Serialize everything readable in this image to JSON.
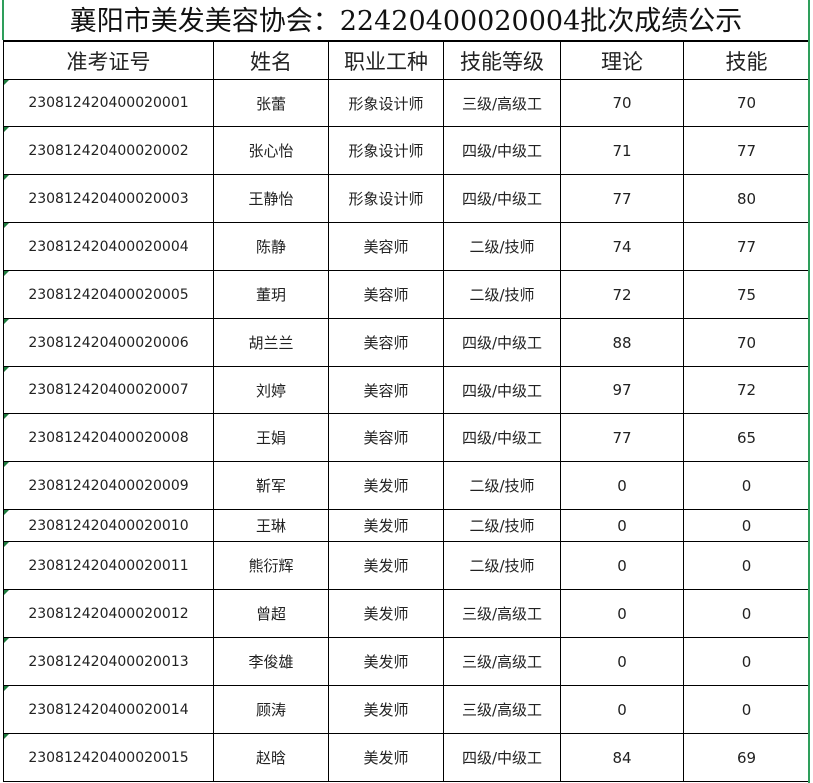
{
  "title": "襄阳市美发美容协会：22420400020004批次成绩公示",
  "headers": [
    "准考证号",
    "姓名",
    "职业工种",
    "技能等级",
    "理论",
    "技能"
  ],
  "rows": [
    [
      "230812420400020001",
      "张蕾",
      "形象设计师",
      "三级/高级工",
      "70",
      "70"
    ],
    [
      "230812420400020002",
      "张心怡",
      "形象设计师",
      "四级/中级工",
      "71",
      "77"
    ],
    [
      "230812420400020003",
      "王静怡",
      "形象设计师",
      "四级/中级工",
      "77",
      "80"
    ],
    [
      "230812420400020004",
      "陈静",
      "美容师",
      "二级/技师",
      "74",
      "77"
    ],
    [
      "230812420400020005",
      "董玥",
      "美容师",
      "二级/技师",
      "72",
      "75"
    ],
    [
      "230812420400020006",
      "胡兰兰",
      "美容师",
      "四级/中级工",
      "88",
      "70"
    ],
    [
      "230812420400020007",
      "刘婷",
      "美容师",
      "四级/中级工",
      "97",
      "72"
    ],
    [
      "230812420400020008",
      "王娟",
      "美容师",
      "四级/中级工",
      "77",
      "65"
    ],
    [
      "230812420400020009",
      "靳军",
      "美发师",
      "二级/技师",
      "0",
      "0"
    ],
    [
      "230812420400020010",
      "王琳",
      "美发师",
      "二级/技师",
      "0",
      "0"
    ],
    [
      "230812420400020011",
      "熊衍辉",
      "美发师",
      "二级/技师",
      "0",
      "0"
    ],
    [
      "230812420400020012",
      "曾超",
      "美发师",
      "三级/高级工",
      "0",
      "0"
    ],
    [
      "230812420400020013",
      "李俊雄",
      "美发师",
      "三级/高级工",
      "0",
      "0"
    ],
    [
      "230812420400020014",
      "顾涛",
      "美发师",
      "三级/高级工",
      "0",
      "0"
    ],
    [
      "230812420400020015",
      "赵晗",
      "美发师",
      "四级/中级工",
      "84",
      "69"
    ]
  ]
}
